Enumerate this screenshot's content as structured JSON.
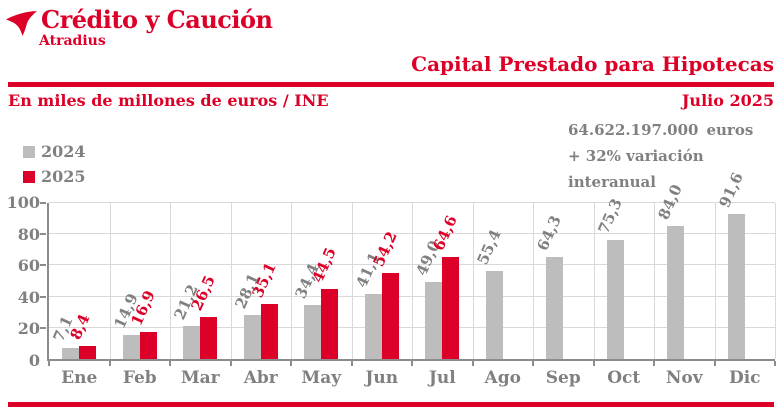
{
  "brand": {
    "name": "Crédito y Caución",
    "subname": "Atradius"
  },
  "header": {
    "title": "Capital Prestado para Hipotecas"
  },
  "subheader": {
    "unit_label": "En miles de millones de euros / INE",
    "period": "Julio 2025"
  },
  "stats": {
    "amount": "64.622.197.000",
    "amount_unit": "euros",
    "variation": "+ 32% variación interanual"
  },
  "colors": {
    "brand_red": "#dc0028",
    "bar_gray": "#bdbdbd",
    "text_gray": "#808080",
    "gridline": "#d9d9d9",
    "axis": "#8c8c8c"
  },
  "chart_data": {
    "type": "bar",
    "title": "Capital Prestado para Hipotecas",
    "subtitle": "En miles de millones de euros / INE",
    "categories": [
      "Ene",
      "Feb",
      "Mar",
      "Abr",
      "May",
      "Jun",
      "Jul",
      "Ago",
      "Sep",
      "Oct",
      "Nov",
      "Dic"
    ],
    "series": [
      {
        "name": "2024",
        "color": "#bdbdbd",
        "label_color": "#808080",
        "values": [
          7.1,
          14.9,
          21.2,
          28.1,
          34.4,
          41.1,
          49.0,
          55.4,
          64.3,
          75.3,
          84.0,
          91.6
        ]
      },
      {
        "name": "2025",
        "color": "#dc0028",
        "label_color": "#dc0028",
        "values": [
          8.4,
          16.9,
          26.5,
          35.1,
          44.5,
          54.2,
          64.6,
          null,
          null,
          null,
          null,
          null
        ]
      }
    ],
    "ylim": [
      0,
      100
    ],
    "yticks": [
      0,
      20,
      40,
      60,
      80,
      100
    ],
    "grid": true,
    "legend_position": "top-left",
    "value_label_format": "decimal-comma-1",
    "value_label_rotation_deg": -66
  }
}
